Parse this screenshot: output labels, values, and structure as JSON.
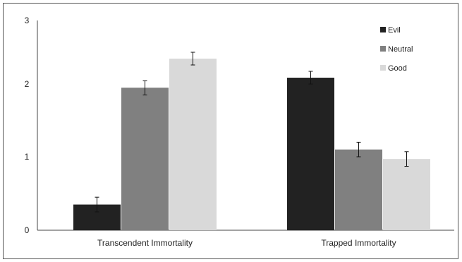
{
  "chart_data": {
    "type": "bar",
    "categories": [
      "Transcendent Immortality",
      "Trapped Immortality"
    ],
    "series": [
      {
        "name": "Evil",
        "values": [
          0.35,
          2.1
        ],
        "errors": [
          0.1,
          0.1
        ],
        "color": "#222222"
      },
      {
        "name": "Neutral",
        "values": [
          1.95,
          1.1
        ],
        "errors": [
          0.1,
          0.1
        ],
        "color": "#808080"
      },
      {
        "name": "Good",
        "values": [
          2.4,
          0.97
        ],
        "errors": [
          0.1,
          0.1
        ],
        "color": "#d9d9d9"
      }
    ],
    "yticks": [
      {
        "value": 0,
        "label": "0"
      },
      {
        "value": 1,
        "label": "1"
      },
      {
        "value": 2,
        "label": "2"
      },
      {
        "value": 3,
        "label": "3"
      }
    ],
    "ylim": [
      0,
      3
    ],
    "grid": false,
    "legend_position": "top-right"
  }
}
